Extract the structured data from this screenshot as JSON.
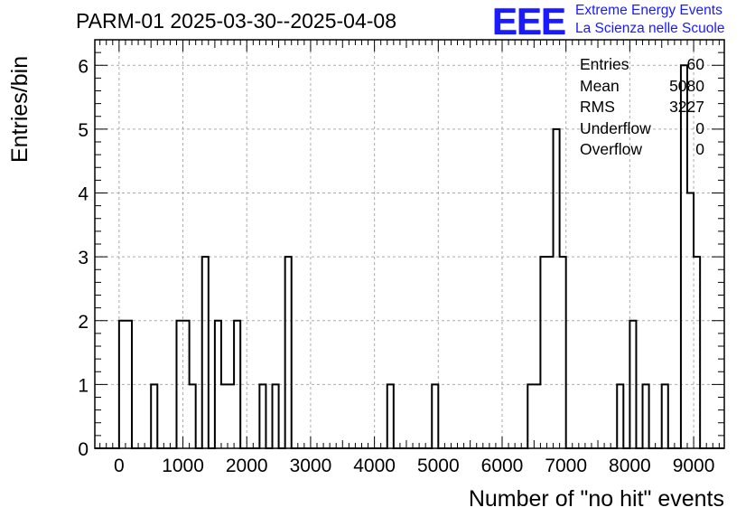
{
  "header": {
    "title": "PARM-01 2025-03-30--2025-04-08",
    "logo_text": "EEE",
    "logo_line1": "Extreme Energy Events",
    "logo_line2": "La Scienza nelle Scuole"
  },
  "stats": {
    "rows": [
      {
        "label": "Entries",
        "value": "60"
      },
      {
        "label": "Mean",
        "value": "5080"
      },
      {
        "label": "RMS",
        "value": "3227"
      },
      {
        "label": "Underflow",
        "value": "0"
      },
      {
        "label": "Overflow",
        "value": "0"
      }
    ]
  },
  "colors": {
    "logo": "#1a1aff",
    "grid": "#aaaaaa",
    "line": "#000000"
  },
  "chart_data": {
    "type": "histogram",
    "title": "PARM-01 2025-03-30--2025-04-08",
    "xlabel": "Number of \"no hit\" events",
    "ylabel": "Entries/bin",
    "xlim": [
      -380,
      9480
    ],
    "ylim": [
      0,
      6.4
    ],
    "bin_width": 100,
    "xticks": [
      0,
      1000,
      2000,
      3000,
      4000,
      5000,
      6000,
      7000,
      8000,
      9000
    ],
    "yticks": [
      0,
      1,
      2,
      3,
      4,
      5,
      6
    ],
    "grid": true,
    "bins": [
      {
        "x": 0,
        "count": 2
      },
      {
        "x": 100,
        "count": 2
      },
      {
        "x": 500,
        "count": 1
      },
      {
        "x": 900,
        "count": 2
      },
      {
        "x": 1000,
        "count": 2
      },
      {
        "x": 1100,
        "count": 1
      },
      {
        "x": 1300,
        "count": 3
      },
      {
        "x": 1500,
        "count": 2
      },
      {
        "x": 1600,
        "count": 1
      },
      {
        "x": 1700,
        "count": 1
      },
      {
        "x": 1800,
        "count": 2
      },
      {
        "x": 2200,
        "count": 1
      },
      {
        "x": 2400,
        "count": 1
      },
      {
        "x": 2600,
        "count": 3
      },
      {
        "x": 4200,
        "count": 1
      },
      {
        "x": 4900,
        "count": 1
      },
      {
        "x": 6400,
        "count": 1
      },
      {
        "x": 6500,
        "count": 1
      },
      {
        "x": 6600,
        "count": 3
      },
      {
        "x": 6700,
        "count": 3
      },
      {
        "x": 6800,
        "count": 5
      },
      {
        "x": 6900,
        "count": 3
      },
      {
        "x": 7800,
        "count": 1
      },
      {
        "x": 8000,
        "count": 2
      },
      {
        "x": 8200,
        "count": 1
      },
      {
        "x": 8500,
        "count": 1
      },
      {
        "x": 8800,
        "count": 6
      },
      {
        "x": 8900,
        "count": 4
      },
      {
        "x": 9000,
        "count": 3
      }
    ]
  }
}
